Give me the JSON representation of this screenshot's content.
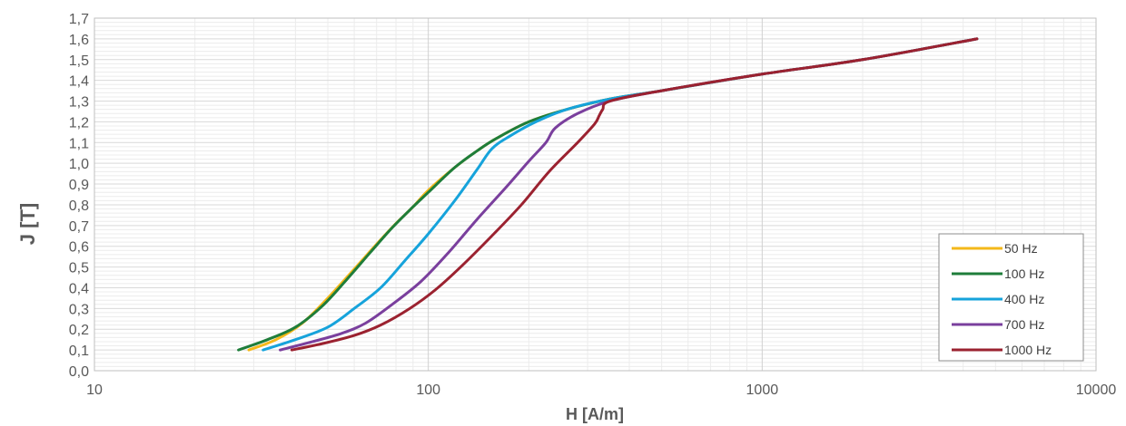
{
  "chart_data": {
    "type": "line",
    "xlabel": "H [A/m]",
    "ylabel": "J [T]",
    "x_scale": "log",
    "xlim": [
      10,
      10000
    ],
    "ylim": [
      0.0,
      1.7
    ],
    "x_ticks": [
      "10",
      "100",
      "1000",
      "10000"
    ],
    "y_ticks": [
      "0,0",
      "0,1",
      "0,2",
      "0,3",
      "0,4",
      "0,5",
      "0,6",
      "0,7",
      "0,8",
      "0,9",
      "1,0",
      "1,1",
      "1,2",
      "1,3",
      "1,4",
      "1,5",
      "1,6",
      "1,7"
    ],
    "grid": true,
    "legend_position": "bottom-right",
    "series": [
      {
        "name": "50 Hz",
        "color": "#F4B81A",
        "points": [
          [
            29,
            0.1
          ],
          [
            35,
            0.15
          ],
          [
            42,
            0.23
          ],
          [
            50,
            0.35
          ],
          [
            60,
            0.49
          ],
          [
            70,
            0.61
          ],
          [
            80,
            0.71
          ],
          [
            90,
            0.79
          ],
          [
            100,
            0.87
          ],
          [
            120,
            0.98
          ],
          [
            140,
            1.06
          ],
          [
            160,
            1.12
          ],
          [
            200,
            1.2
          ],
          [
            260,
            1.26
          ],
          [
            350,
            1.31
          ],
          [
            500,
            1.35
          ],
          [
            1000,
            1.43
          ],
          [
            2000,
            1.5
          ],
          [
            4400,
            1.6
          ]
        ]
      },
      {
        "name": "100 Hz",
        "color": "#1E7D3A",
        "points": [
          [
            27,
            0.1
          ],
          [
            33,
            0.15
          ],
          [
            40,
            0.21
          ],
          [
            48,
            0.31
          ],
          [
            57,
            0.44
          ],
          [
            67,
            0.57
          ],
          [
            78,
            0.69
          ],
          [
            90,
            0.79
          ],
          [
            100,
            0.86
          ],
          [
            120,
            0.98
          ],
          [
            140,
            1.06
          ],
          [
            160,
            1.12
          ],
          [
            200,
            1.2
          ],
          [
            260,
            1.26
          ],
          [
            350,
            1.31
          ],
          [
            500,
            1.35
          ],
          [
            1000,
            1.43
          ],
          [
            2000,
            1.5
          ],
          [
            4400,
            1.6
          ]
        ]
      },
      {
        "name": "400 Hz",
        "color": "#16A3DB",
        "points": [
          [
            32,
            0.1
          ],
          [
            40,
            0.15
          ],
          [
            50,
            0.21
          ],
          [
            60,
            0.3
          ],
          [
            72,
            0.4
          ],
          [
            85,
            0.53
          ],
          [
            100,
            0.66
          ],
          [
            120,
            0.82
          ],
          [
            140,
            0.97
          ],
          [
            155,
            1.07
          ],
          [
            175,
            1.13
          ],
          [
            210,
            1.2
          ],
          [
            260,
            1.26
          ],
          [
            350,
            1.31
          ],
          [
            500,
            1.35
          ],
          [
            1000,
            1.43
          ],
          [
            2000,
            1.5
          ],
          [
            4400,
            1.6
          ]
        ]
      },
      {
        "name": "700 Hz",
        "color": "#7A3F9D",
        "points": [
          [
            36,
            0.1
          ],
          [
            45,
            0.14
          ],
          [
            55,
            0.18
          ],
          [
            65,
            0.23
          ],
          [
            78,
            0.32
          ],
          [
            95,
            0.43
          ],
          [
            115,
            0.57
          ],
          [
            140,
            0.73
          ],
          [
            170,
            0.88
          ],
          [
            200,
            1.01
          ],
          [
            225,
            1.1
          ],
          [
            240,
            1.17
          ],
          [
            280,
            1.24
          ],
          [
            350,
            1.3
          ],
          [
            500,
            1.35
          ],
          [
            1000,
            1.43
          ],
          [
            2000,
            1.5
          ],
          [
            4400,
            1.6
          ]
        ]
      },
      {
        "name": "1000 Hz",
        "color": "#9B2230",
        "points": [
          [
            39,
            0.1
          ],
          [
            48,
            0.13
          ],
          [
            60,
            0.17
          ],
          [
            72,
            0.22
          ],
          [
            88,
            0.3
          ],
          [
            105,
            0.39
          ],
          [
            125,
            0.5
          ],
          [
            155,
            0.65
          ],
          [
            190,
            0.8
          ],
          [
            230,
            0.96
          ],
          [
            280,
            1.1
          ],
          [
            315,
            1.19
          ],
          [
            325,
            1.23
          ],
          [
            333,
            1.26
          ],
          [
            350,
            1.3
          ],
          [
            500,
            1.35
          ],
          [
            1000,
            1.43
          ],
          [
            2000,
            1.5
          ],
          [
            4400,
            1.6
          ]
        ]
      }
    ]
  }
}
